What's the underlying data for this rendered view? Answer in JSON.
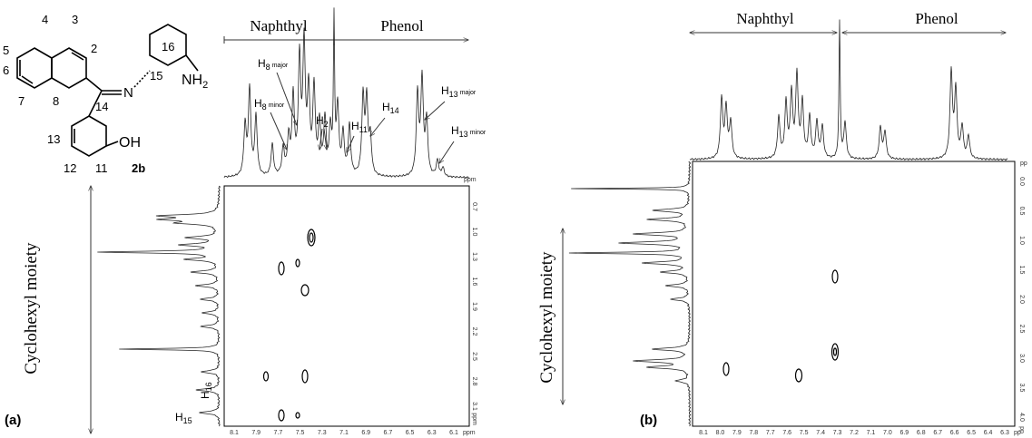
{
  "panel_a": {
    "label": "(a)",
    "regions": [
      "Naphthyl",
      "Phenol"
    ],
    "side_region": "Cyclohexyl moiety",
    "compound": {
      "name": "2b",
      "atoms": [
        "2",
        "3",
        "4",
        "5",
        "6",
        "7",
        "8",
        "11",
        "12",
        "13",
        "14",
        "15",
        "16"
      ],
      "imine": "N",
      "amine": {
        "base": "NH",
        "sub": "2"
      },
      "hydroxyl": "OH"
    },
    "peak_labels": [
      {
        "h": "H",
        "n": "8",
        "tag": "major"
      },
      {
        "h": "H",
        "n": "8",
        "tag": "minor"
      },
      {
        "h": "H",
        "n": "2"
      },
      {
        "h": "H",
        "n": "11"
      },
      {
        "h": "H",
        "n": "14"
      },
      {
        "h": "H",
        "n": "13",
        "tag": "major"
      },
      {
        "h": "H",
        "n": "13",
        "tag": "minor"
      },
      {
        "h": "H",
        "n": "16"
      },
      {
        "h": "H",
        "n": "15"
      }
    ],
    "top_unit": "ppm",
    "y_ticks": [
      "0.7",
      "1.0",
      "1.3",
      "1.6",
      "1.9",
      "2.2",
      "2.5",
      "2.8",
      "3.1"
    ],
    "y_unit": "ppm",
    "x_ticks": [
      "8.1",
      "7.9",
      "7.7",
      "7.5",
      "7.3",
      "7.1",
      "6.9",
      "6.7",
      "6.5",
      "6.3",
      "6.1"
    ],
    "x_unit": "ppm"
  },
  "panel_b": {
    "label": "(b)",
    "regions": [
      "Naphthyl",
      "Phenol"
    ],
    "side_region": "Cyclohexyl moiety",
    "top_unit": "pp",
    "y_ticks": [
      "0.0",
      "0.5",
      "1.0",
      "1.5",
      "2.0",
      "2.5",
      "3.0",
      "3.5",
      "4.0"
    ],
    "y_unit": "pp",
    "x_ticks": [
      "8.1",
      "8.0",
      "7.9",
      "7.8",
      "7.7",
      "7.6",
      "7.5",
      "7.4",
      "7.3",
      "7.2",
      "7.1",
      "7.0",
      "6.9",
      "6.8",
      "6.7",
      "6.6",
      "6.5",
      "6.4",
      "6.3"
    ],
    "x_unit": "pp"
  }
}
